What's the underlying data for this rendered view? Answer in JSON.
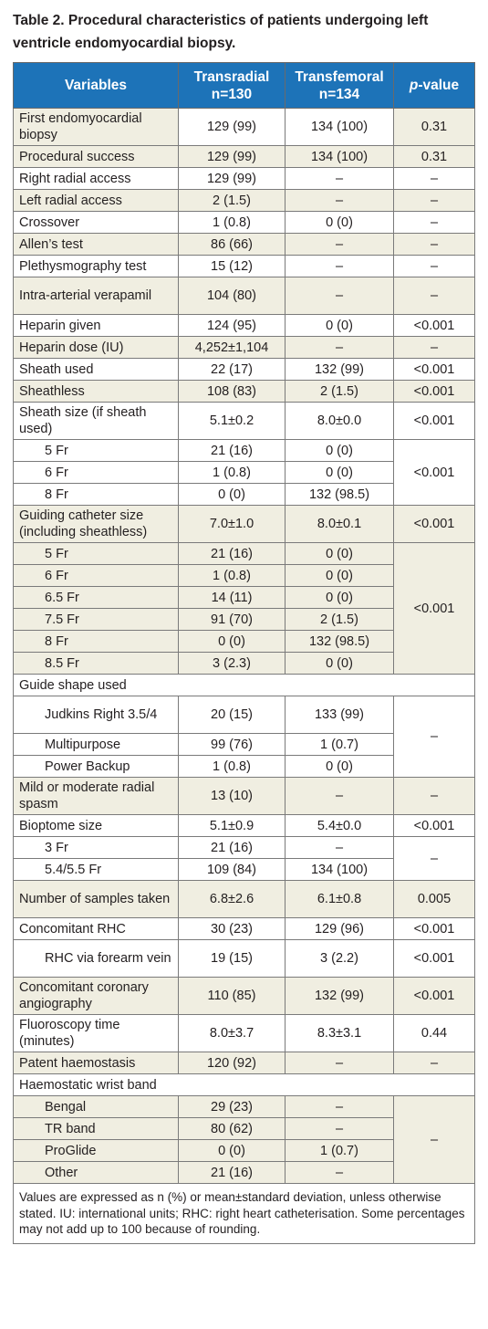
{
  "caption": {
    "line1": "Table 2. Procedural characteristics of patients undergoing left",
    "line2": "ventricle endomyocardial biopsy."
  },
  "header": {
    "variables": "Variables",
    "transradial": "Transradial",
    "transradial_n": "n=130",
    "transfemoral": "Transfemoral",
    "transfemoral_n": "n=134",
    "p_italic": "p",
    "p_rest": "-value"
  },
  "rows": {
    "first_biopsy": {
      "label": "First endomyocardial biopsy",
      "tr": "129 (99)",
      "tf": "134 (100)",
      "p": "0.31"
    },
    "proc_success": {
      "label": "Procedural success",
      "tr": "129 (99)",
      "tf": "134 (100)",
      "p": "0.31"
    },
    "right_radial": {
      "label": "Right radial access",
      "tr": "129 (99)",
      "tf": "–",
      "p": "–"
    },
    "left_radial": {
      "label": "Left radial access",
      "tr": "2 (1.5)",
      "tf": "–",
      "p": "–"
    },
    "crossover": {
      "label": "Crossover",
      "tr": "1 (0.8)",
      "tf": "0 (0)",
      "p": "–"
    },
    "allens": {
      "label": "Allen’s test",
      "tr": "86 (66)",
      "tf": "–",
      "p": "–"
    },
    "pleth": {
      "label": "Plethysmography test",
      "tr": "15 (12)",
      "tf": "–",
      "p": "–"
    },
    "verapamil": {
      "label": "Intra-arterial verapamil",
      "tr": "104 (80)",
      "tf": "–",
      "p": "–"
    },
    "heparin_given": {
      "label": "Heparin given",
      "tr": "124 (95)",
      "tf": "0 (0)",
      "p": "<0.001"
    },
    "heparin_dose": {
      "label": "Heparin dose (IU)",
      "tr": "4,252±1,104",
      "tf": "–",
      "p": "–"
    },
    "sheath_used": {
      "label": "Sheath used",
      "tr": "22 (17)",
      "tf": "132 (99)",
      "p": "<0.001"
    },
    "sheathless": {
      "label": "Sheathless",
      "tr": "108 (83)",
      "tf": "2 (1.5)",
      "p": "<0.001"
    },
    "sheath_size": {
      "label": "Sheath size (if sheath used)",
      "tr": "5.1±0.2",
      "tf": "8.0±0.0",
      "p": "<0.001"
    },
    "ss_5fr": {
      "label": "5 Fr",
      "tr": "21 (16)",
      "tf": "0 (0)"
    },
    "ss_6fr": {
      "label": "6 Fr",
      "tr": "1 (0.8)",
      "tf": "0 (0)"
    },
    "ss_8fr": {
      "label": "8 Fr",
      "tr": "0 (0)",
      "tf": "132 (98.5)"
    },
    "ss_group_p": "<0.001",
    "guide_size": {
      "label": "Guiding catheter size (including sheathless)",
      "tr": "7.0±1.0",
      "tf": "8.0±0.1",
      "p": "<0.001"
    },
    "gc_5fr": {
      "label": "5 Fr",
      "tr": "21 (16)",
      "tf": "0 (0)"
    },
    "gc_6fr": {
      "label": "6 Fr",
      "tr": "1 (0.8)",
      "tf": "0 (0)"
    },
    "gc_65fr": {
      "label": "6.5 Fr",
      "tr": "14 (11)",
      "tf": "0 (0)"
    },
    "gc_75fr": {
      "label": "7.5 Fr",
      "tr": "91 (70)",
      "tf": "2 (1.5)"
    },
    "gc_8fr": {
      "label": "8 Fr",
      "tr": "0 (0)",
      "tf": "132 (98.5)"
    },
    "gc_85fr": {
      "label": "8.5 Fr",
      "tr": "3 (2.3)",
      "tf": "0 (0)"
    },
    "gc_group_p": "<0.001",
    "guide_shape": {
      "label": "Guide shape used"
    },
    "judkins": {
      "label": "Judkins Right 3.5/4",
      "tr": "20 (15)",
      "tf": "133 (99)"
    },
    "multipurpose": {
      "label": "Multipurpose",
      "tr": "99 (76)",
      "tf": "1 (0.7)"
    },
    "power_backup": {
      "label": "Power Backup",
      "tr": "1 (0.8)",
      "tf": "0 (0)"
    },
    "shape_group_p": "–",
    "spasm": {
      "label": "Mild or moderate radial spasm",
      "tr": "13 (10)",
      "tf": "–",
      "p": "–"
    },
    "bioptome": {
      "label": "Bioptome size",
      "tr": "5.1±0.9",
      "tf": "5.4±0.0",
      "p": "<0.001"
    },
    "bio_3fr": {
      "label": "3 Fr",
      "tr": "21 (16)",
      "tf": "–"
    },
    "bio_54fr": {
      "label": "5.4/5.5 Fr",
      "tr": "109 (84)",
      "tf": "134 (100)"
    },
    "bio_group_p": "–",
    "samples": {
      "label": "Number of samples taken",
      "tr": "6.8±2.6",
      "tf": "6.1±0.8",
      "p": "0.005"
    },
    "rhc": {
      "label": "Concomitant RHC",
      "tr": "30 (23)",
      "tf": "129 (96)",
      "p": "<0.001"
    },
    "rhc_forearm": {
      "label": "RHC via forearm vein",
      "tr": "19 (15)",
      "tf": "3 (2.2)",
      "p": "<0.001"
    },
    "coronary": {
      "label": "Concomitant coronary angiography",
      "tr": "110 (85)",
      "tf": "132 (99)",
      "p": "<0.001"
    },
    "fluoro": {
      "label": "Fluoroscopy time (minutes)",
      "tr": "8.0±3.7",
      "tf": "8.3±3.1",
      "p": "0.44"
    },
    "haemostasis": {
      "label": "Patent haemostasis",
      "tr": "120 (92)",
      "tf": "–",
      "p": "–"
    },
    "wrist_band": {
      "label": "Haemostatic wrist band"
    },
    "bengal": {
      "label": "Bengal",
      "tr": "29 (23)",
      "tf": "–"
    },
    "tr_band": {
      "label": "TR band",
      "tr": "80 (62)",
      "tf": "–"
    },
    "proglide": {
      "label": "ProGlide",
      "tr": "0 (0)",
      "tf": "1 (0.7)"
    },
    "other": {
      "label": "Other",
      "tr": "21 (16)",
      "tf": "–"
    },
    "band_group_p": "–"
  },
  "footnote": "Values are expressed as n (%) or mean±standard deviation, unless otherwise stated. IU: international units; RHC: right heart catheterisation. Some percentages may not add up to 100 because of rounding."
}
